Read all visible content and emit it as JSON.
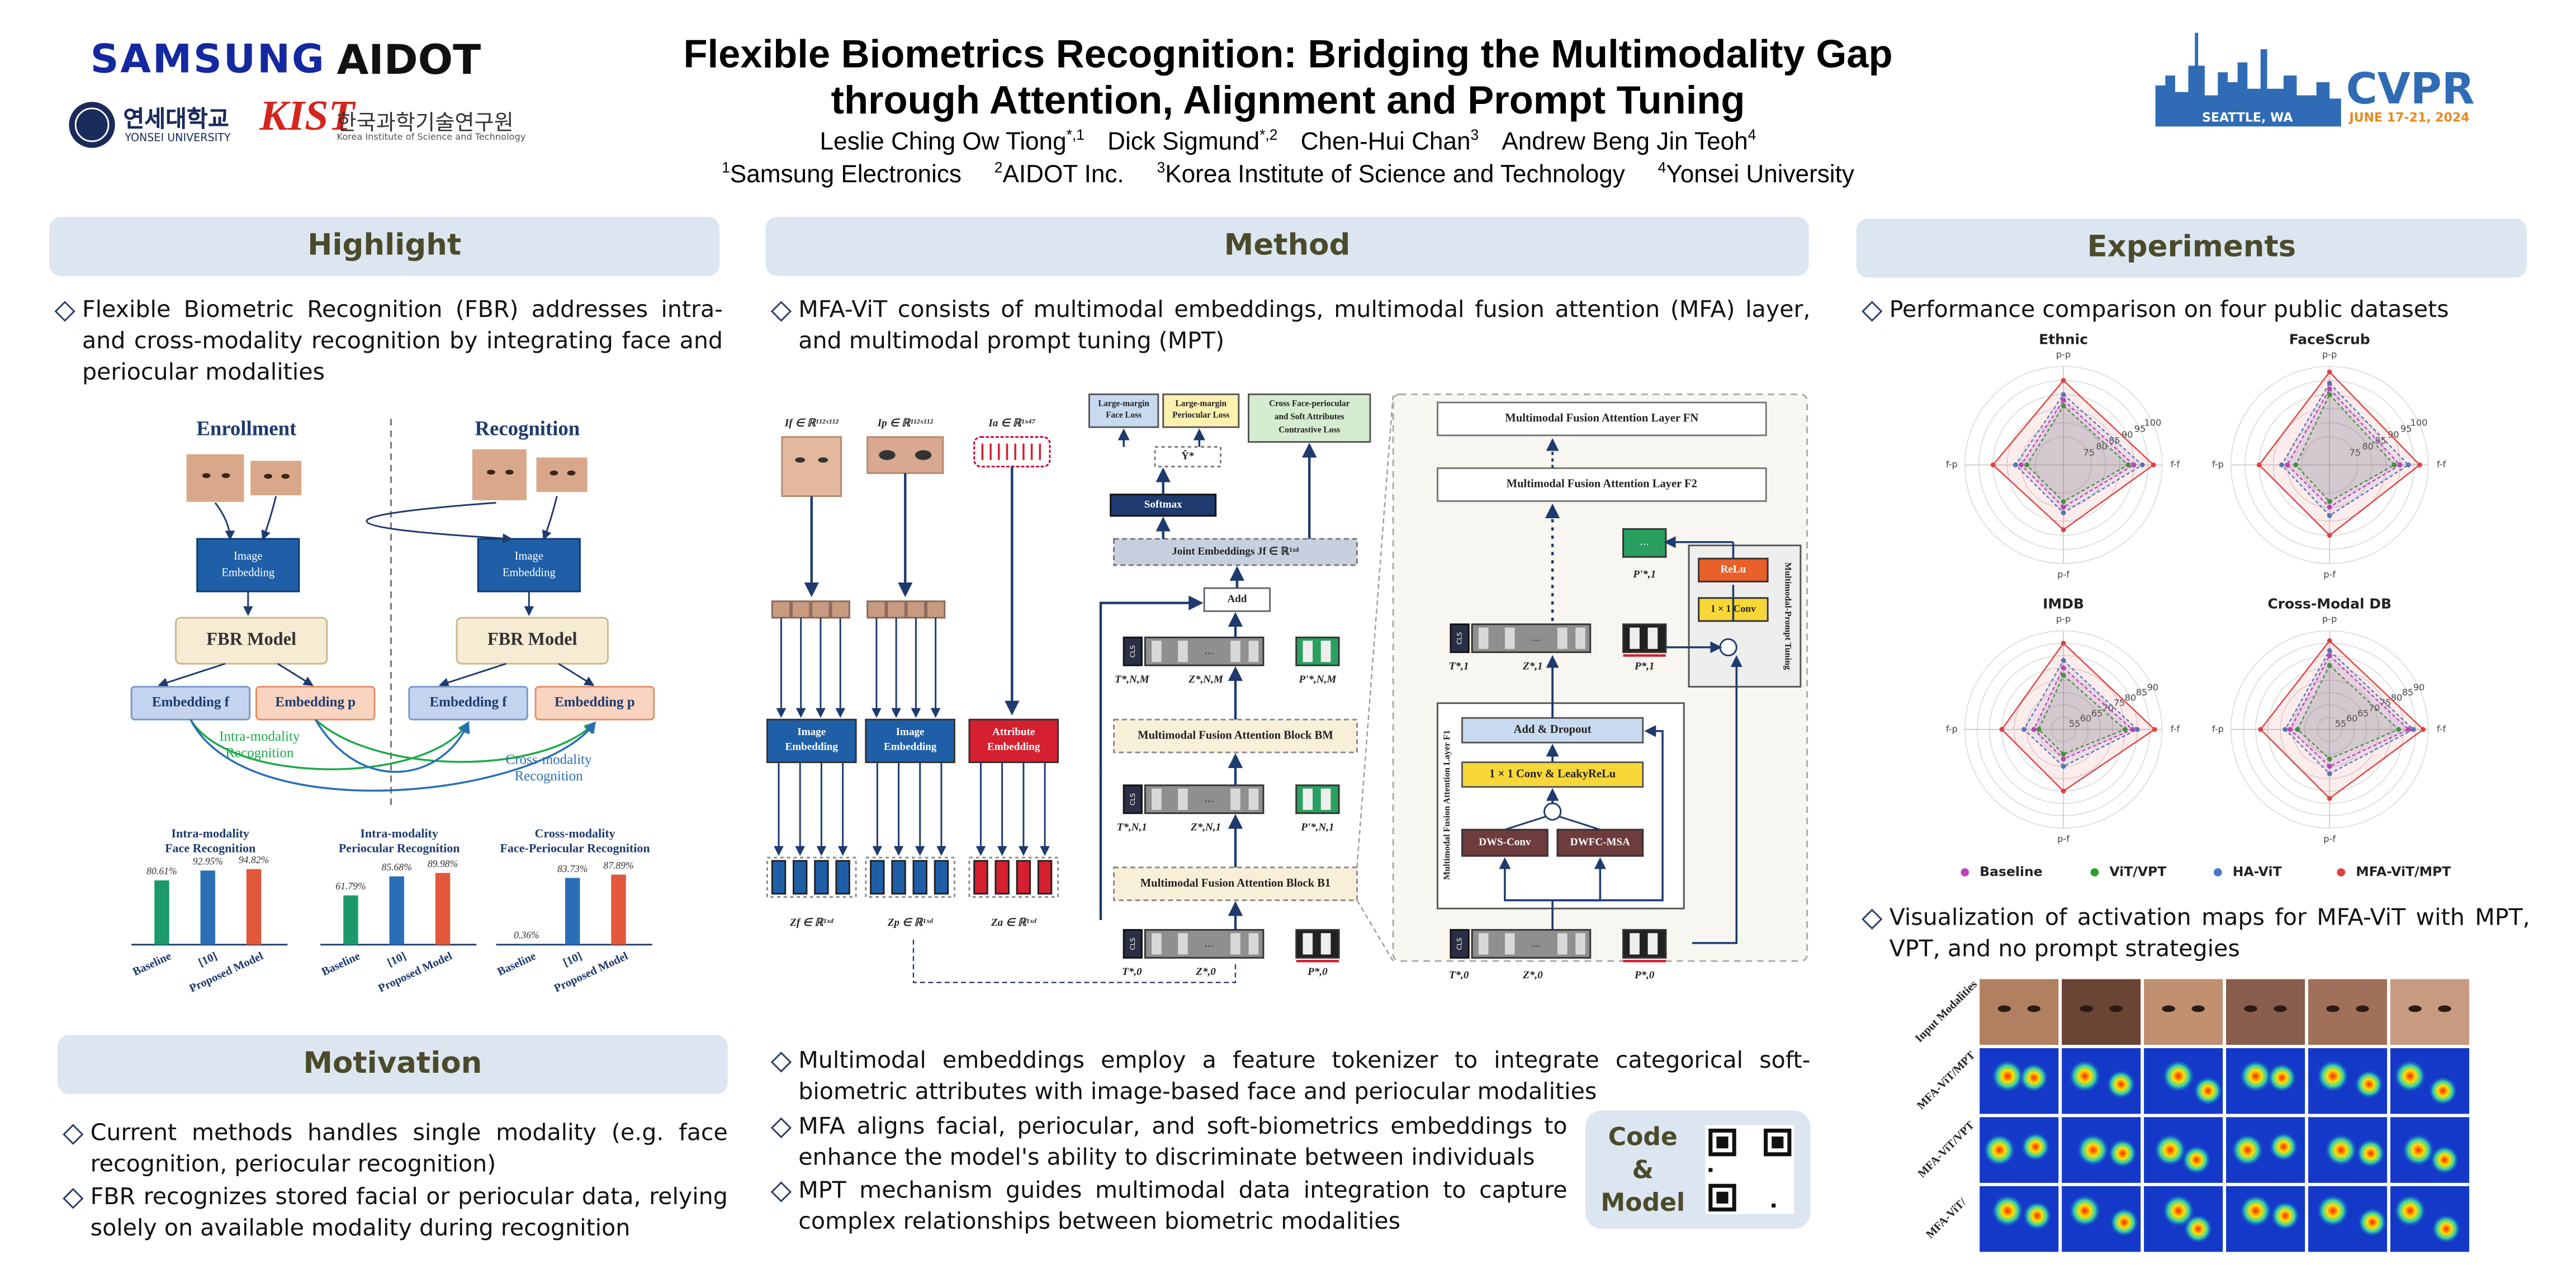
{
  "header": {
    "logos": {
      "samsung": "SAMSUNG",
      "aidot": "AIDOT",
      "yonsei_kr": "연세대학교",
      "yonsei_en": "YONSEI UNIVERSITY",
      "kist": "KIST",
      "kist_kr": "한국과학기술연구원",
      "kist_en": "Korea Institute of Science and Technology",
      "cvpr": "CVPR",
      "cvpr_place": "SEATTLE, WA",
      "cvpr_date": "JUNE 17-21, 2024"
    },
    "title": [
      "Flexible Biometrics Recognition: Bridging the Multimodality Gap",
      "through Attention, Alignment and Prompt Tuning"
    ],
    "authors": [
      {
        "name": "Leslie Ching Ow Tiong",
        "sup": "*,1"
      },
      {
        "name": "Dick Sigmund",
        "sup": "*,2"
      },
      {
        "name": "Chen-Hui Chan",
        "sup": "3"
      },
      {
        "name": "Andrew Beng Jin Teoh",
        "sup": "4"
      }
    ],
    "affiliations": [
      {
        "sup": "1",
        "name": "Samsung Electronics"
      },
      {
        "sup": "2",
        "name": "AIDOT Inc."
      },
      {
        "sup": "3",
        "name": "Korea Institute of Science and Technology"
      },
      {
        "sup": "4",
        "name": "Yonsei University"
      }
    ]
  },
  "highlight": {
    "heading": "Highlight",
    "bullets": [
      "Flexible Biometric Recognition (FBR) addresses intra- and cross-modality recognition by integrating face and periocular modalities"
    ],
    "diagram": {
      "enrollment": "Enrollment",
      "recognition": "Recognition",
      "image_embedding": [
        "Image",
        "Embedding"
      ],
      "fbr_model": "FBR Model",
      "embedding_f": "Embedding f",
      "embedding_p": "Embedding p",
      "intra": [
        "Intra-modality",
        "Recognition"
      ],
      "cross": [
        "Cross-modality",
        "Recognition"
      ]
    },
    "bar_colors": [
      "#1b9a6c",
      "#2a6fb6",
      "#e2583a"
    ],
    "charts": [
      {
        "type": "bar",
        "title": [
          "Intra-modality",
          "Face Recognition"
        ],
        "categories": [
          "Baseline",
          "[10]",
          "Proposed Model"
        ],
        "values": [
          80.61,
          92.95,
          94.82
        ],
        "value_labels": [
          "80.61%",
          "92.95%",
          "94.82%"
        ]
      },
      {
        "type": "bar",
        "title": [
          "Intra-modality",
          "Periocular Recognition"
        ],
        "categories": [
          "Baseline",
          "[10]",
          "Proposed Model"
        ],
        "values": [
          61.79,
          85.68,
          89.98
        ],
        "value_labels": [
          "61.79%",
          "85.68%",
          "89.98%"
        ]
      },
      {
        "type": "bar",
        "title": [
          "Cross-modality",
          "Face-Periocular Recognition"
        ],
        "categories": [
          "Baseline",
          "[10]",
          "Proposed Model"
        ],
        "values": [
          0.36,
          83.73,
          87.89
        ],
        "value_labels": [
          "0.36%",
          "83.73%",
          "87.89%"
        ]
      }
    ]
  },
  "motivation": {
    "heading": "Motivation",
    "bullets": [
      "Current methods handles single modality (e.g. face recognition, periocular recognition)",
      "FBR recognizes stored facial or periocular data, relying solely on available modality during recognition"
    ]
  },
  "method": {
    "heading": "Method",
    "bullets_top": [
      "MFA-ViT consists of multimodal embeddings, multimodal fusion attention (MFA) layer, and multimodal prompt tuning (MPT)"
    ],
    "bullets_bottom": [
      "Multimodal embeddings employ a feature tokenizer to integrate categorical soft-biometric attributes with image-based face and periocular modalities",
      "MFA aligns facial, periocular, and soft-biometrics embeddings to enhance the model's ability to discriminate between individuals",
      "MPT mechanism guides multimodal data integration to capture complex relationships between biometric modalities"
    ],
    "code": [
      "Code",
      "&",
      "Model"
    ],
    "diagram": {
      "in_face": "If ∈ ℝ¹¹²ˣ¹¹²",
      "in_peri": "Ip ∈ ℝ¹¹²ˣ¹¹²",
      "in_attr": "Ia ∈ ℝ¹ˣ⁴⁷",
      "image_embedding": [
        "Image",
        "Embedding"
      ],
      "attribute_embedding": [
        "Attribute",
        "Embedding"
      ],
      "z_face": "Zf ∈ ℝ¹ˣᵈ",
      "z_peri": "Zp ∈ ℝ¹ˣᵈ",
      "z_attr": "Za ∈ ℝ¹ˣᵈ",
      "face_loss": [
        "Large-margin",
        "Face Loss"
      ],
      "peri_loss": [
        "Large-margin",
        "Periocular Loss"
      ],
      "contrastive_loss": [
        "Cross Face-periocular",
        "and Soft Attributes",
        "Contrastive Loss"
      ],
      "y_hat": "Ŷ*",
      "softmax": "Softmax",
      "joint": "Joint Embeddings Jf ∈ ℝ¹ˣᵈ",
      "add": "Add",
      "block_m": "Multimodal Fusion Attention Block BM",
      "block_1": "Multimodal Fusion Attention Block B1",
      "cls": "CLS",
      "dots": "...",
      "t_nm": "T*,N,M",
      "z_nm": "Z*,N,M",
      "p_nm": "P'*,N,M",
      "t_n1": "T*,N,1",
      "z_n1": "Z*,N,1",
      "p_n1": "P'*,N,1",
      "t_0": "T*,0",
      "z_0": "Z*,0",
      "p_0": "P*,0",
      "layer_n": "Multimodal Fusion Attention Layer FN",
      "layer_2": "Multimodal Fusion Attention Layer F2",
      "layer_1": "Multimodal Fusion Attention Layer F1",
      "t_1": "T*,1",
      "z_1": "Z*,1",
      "p_1": "P*,1",
      "p_prime_1": "P'*,1",
      "relu": "ReLu",
      "conv": "1 × 1 Conv",
      "prompt_tuning": "Multimodal-Prompt Tuning",
      "add_dropout": "Add & Dropout",
      "conv_leaky": "1 × 1 Conv & LeakyReLu",
      "dws": "DWS-Conv",
      "dwfc": "DWFC-MSA"
    }
  },
  "experiments": {
    "heading": "Experiments",
    "bullets": [
      "Performance comparison on four public datasets",
      "Visualization of activation maps for MFA-ViT with MPT, VPT, and no prompt strategies"
    ],
    "radar": {
      "type": "radar",
      "axes": [
        "p-p",
        "f-f",
        "p-f",
        "f-p"
      ],
      "series": [
        {
          "name": "Baseline",
          "color": "#c040c0"
        },
        {
          "name": "ViT/VPT",
          "color": "#2ca02c"
        },
        {
          "name": "HA-ViT",
          "color": "#4a7ac0"
        },
        {
          "name": "MFA-ViT/MPT",
          "color": "#e04040"
        }
      ],
      "charts": [
        {
          "title": "Ethnic",
          "rlim": [
            65,
            100
          ],
          "rticks": [
            75,
            80,
            85,
            90,
            95,
            100
          ],
          "values": [
            [
              88,
              90,
              80,
              80
            ],
            [
              86,
              88,
              78,
              78
            ],
            [
              90,
              93,
              82,
              82
            ],
            [
              95,
              97,
              88,
              90
            ]
          ]
        },
        {
          "title": "FaceScrub",
          "rlim": [
            65,
            100
          ],
          "rticks": [
            75,
            80,
            85,
            90,
            95,
            100
          ],
          "values": [
            [
              92,
              90,
              80,
              80
            ],
            [
              90,
              88,
              78,
              77
            ],
            [
              94,
              93,
              83,
              82
            ],
            [
              98,
              97,
              90,
              90
            ]
          ]
        },
        {
          "title": "IMDB",
          "rlim": [
            50,
            90
          ],
          "rticks": [
            55,
            60,
            65,
            70,
            75,
            80,
            85,
            90
          ],
          "values": [
            [
              75,
              78,
              62,
              62
            ],
            [
              72,
              75,
              60,
              60
            ],
            [
              78,
              80,
              65,
              66
            ],
            [
              85,
              87,
              75,
              75
            ]
          ]
        },
        {
          "title": "Cross-Modal DB",
          "rlim": [
            50,
            90
          ],
          "rticks": [
            55,
            60,
            65,
            70,
            75,
            80,
            85,
            90
          ],
          "values": [
            [
              80,
              82,
              65,
              66
            ],
            [
              76,
              78,
              62,
              63
            ],
            [
              82,
              84,
              68,
              68
            ],
            [
              86,
              88,
              78,
              78
            ]
          ]
        }
      ]
    },
    "activation_rows": [
      "Input Modalities",
      "MFA-ViT/MPT",
      "MFA-ViT/VPT",
      "MFA-ViT/"
    ]
  }
}
